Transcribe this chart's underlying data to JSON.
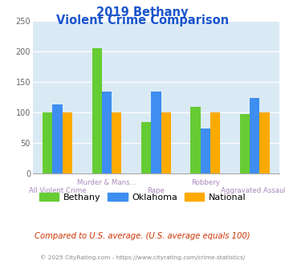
{
  "title_line1": "2019 Bethany",
  "title_line2": "Violent Crime Comparison",
  "categories": [
    "All Violent Crime",
    "Murder & Mans...",
    "Rape",
    "Robbery",
    "Aggravated Assault"
  ],
  "row1_labels": [
    "Murder & Mans...",
    "Robbery"
  ],
  "row1_indices": [
    1,
    3
  ],
  "row2_labels": [
    "All Violent Crime",
    "Rape",
    "Aggravated Assault"
  ],
  "row2_indices": [
    0,
    2,
    4
  ],
  "bethany": [
    100,
    206,
    84,
    109,
    98
  ],
  "oklahoma": [
    114,
    134,
    135,
    74,
    124
  ],
  "national": [
    100,
    100,
    100,
    100,
    100
  ],
  "colors": {
    "bethany": "#66cc33",
    "oklahoma": "#3d8ef0",
    "national": "#ffaa00"
  },
  "ylim": [
    0,
    250
  ],
  "yticks": [
    0,
    50,
    100,
    150,
    200,
    250
  ],
  "bg_color": "#daeaf5",
  "title_color": "#1a55cc",
  "axis_label_color": "#aa88bb",
  "footer_text": "Compared to U.S. average. (U.S. average equals 100)",
  "copyright_text": "© 2025 CityRating.com - https://www.cityrating.com/crime-statistics/",
  "footer_color": "#cc3300",
  "copyright_color": "#888888",
  "legend_labels": [
    "Bethany",
    "Oklahoma",
    "National"
  ]
}
